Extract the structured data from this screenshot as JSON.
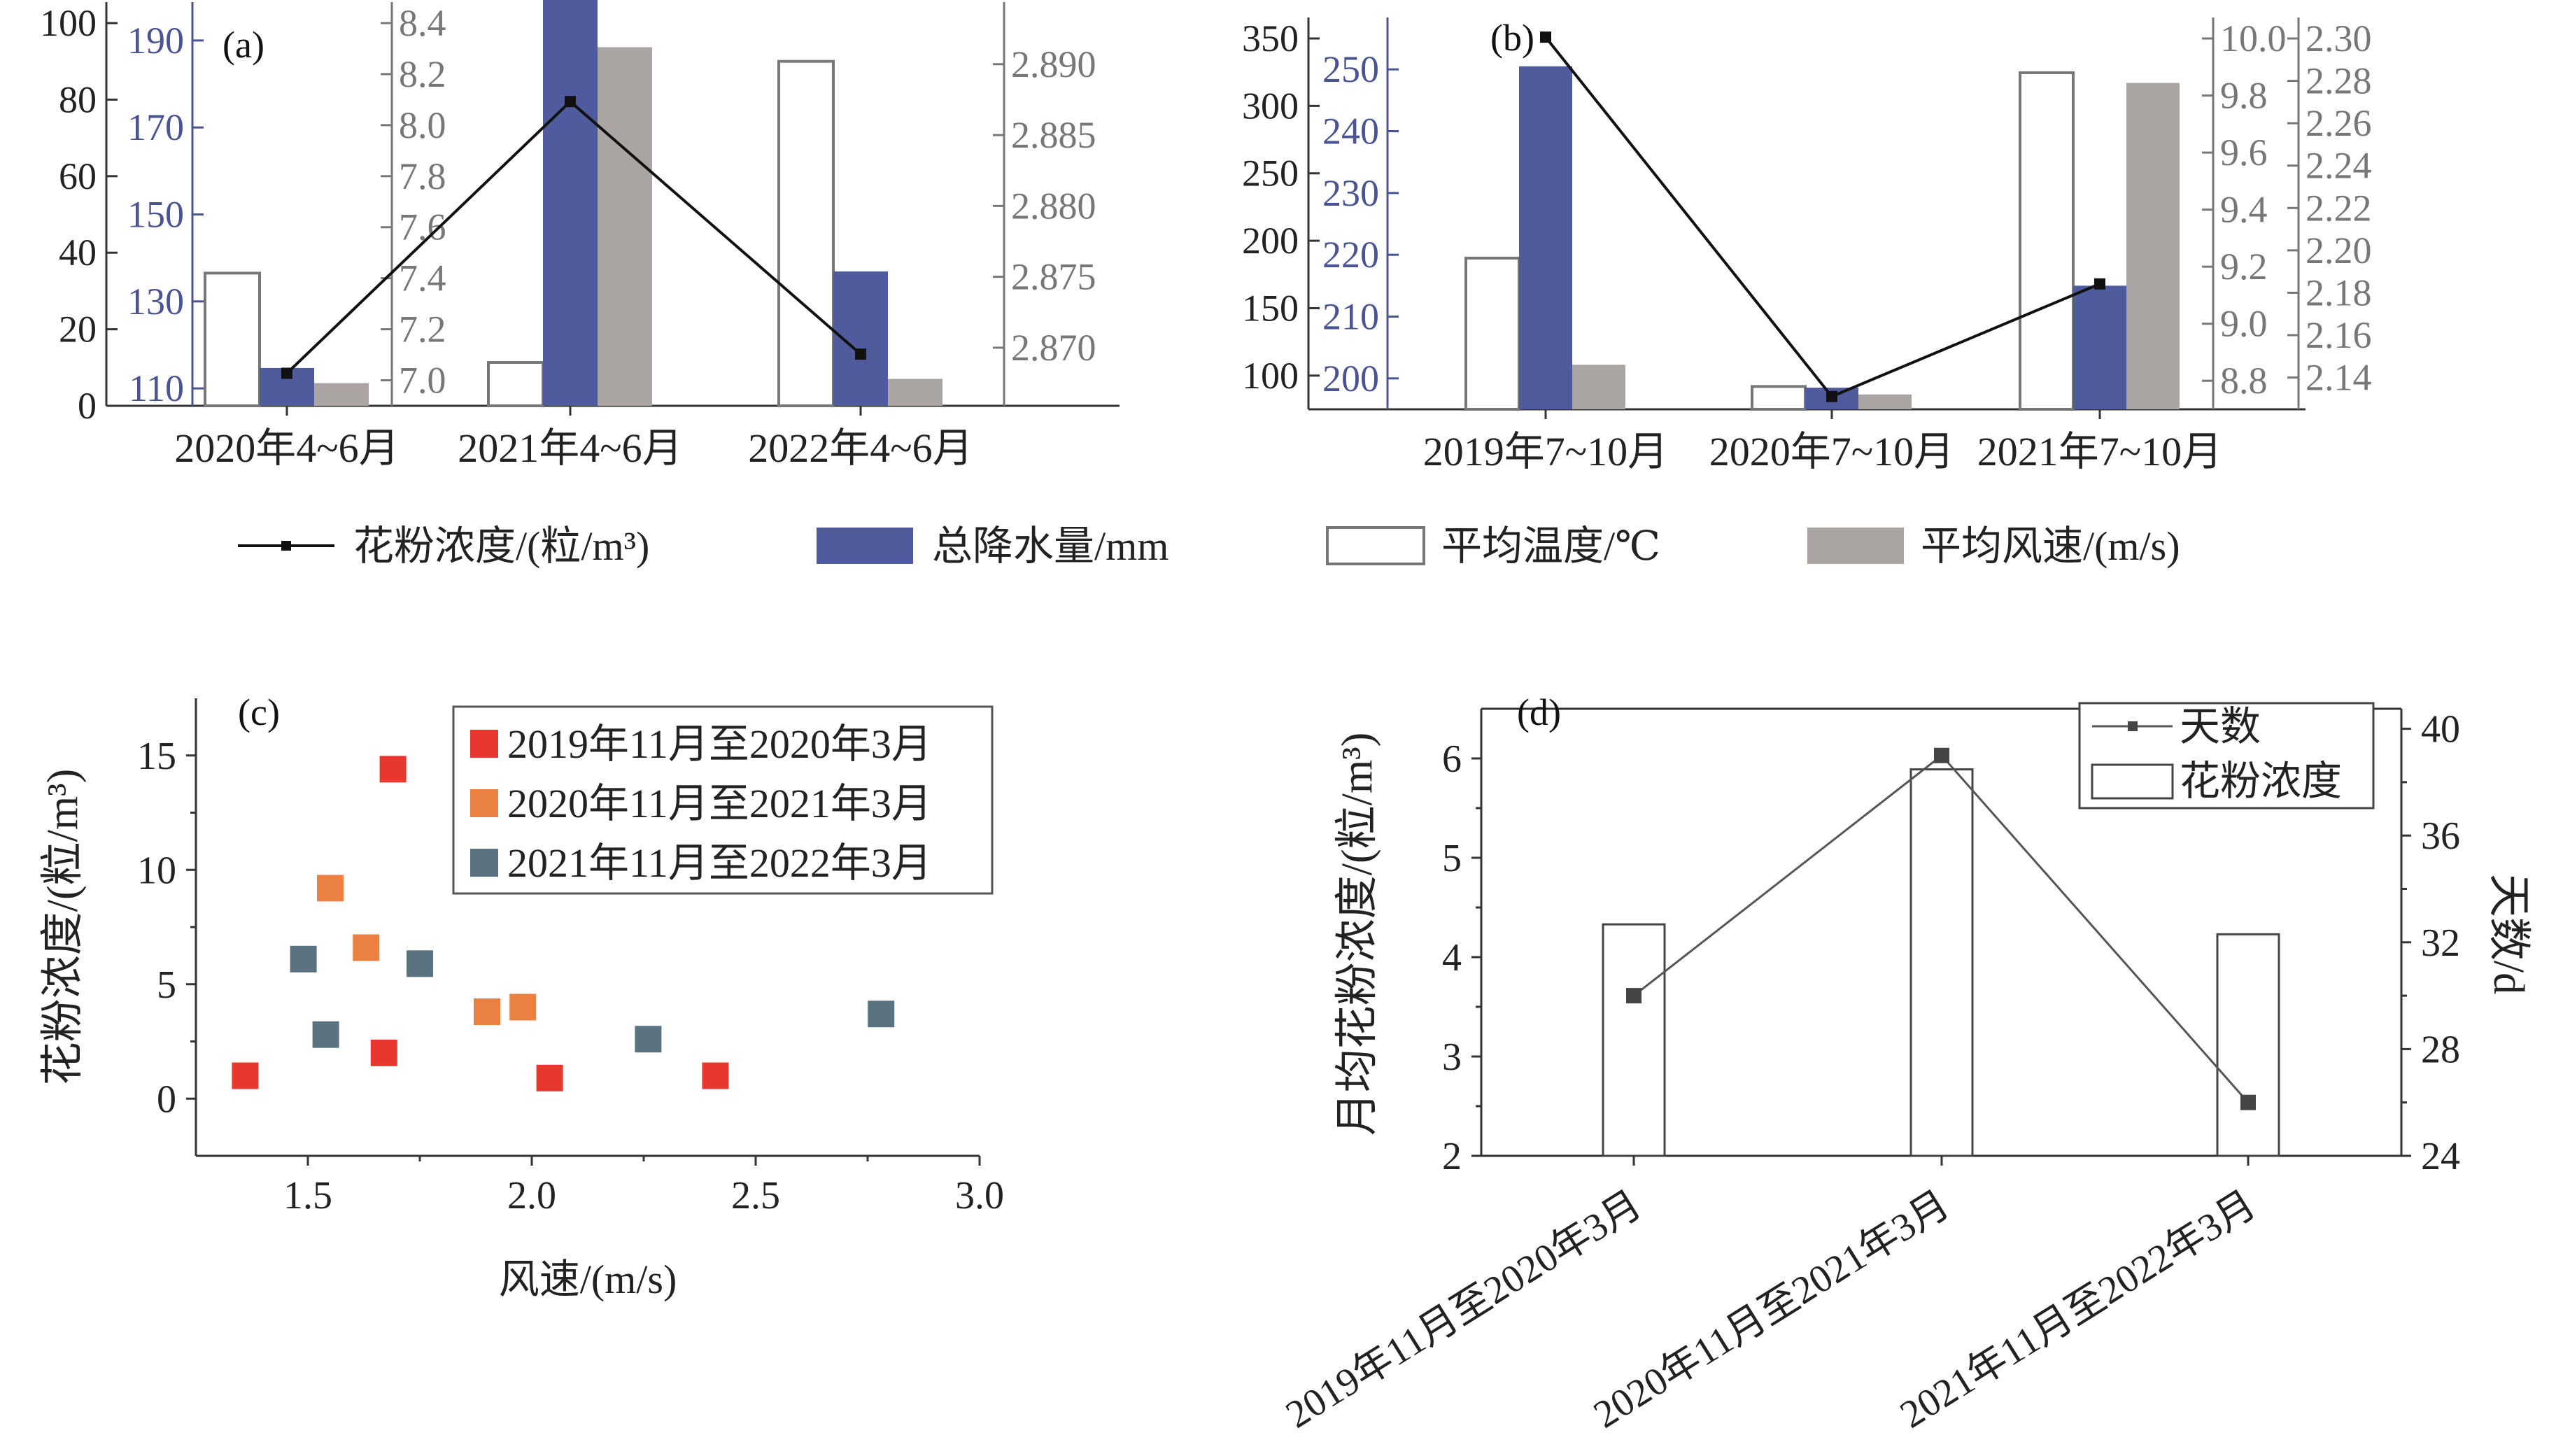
{
  "colors": {
    "axis": "#333333",
    "tick_left": "#222222",
    "tick_precip": "#4a5493",
    "tick_temp": "#777777",
    "tick_wind": "#777777",
    "pollen_line": "#111111",
    "precip_bar": "#4f5b9c",
    "temp_bar_stroke": "#777777",
    "wind_bar": "#aaa4a3",
    "s2019": "#e8372f",
    "s2020": "#ea8143",
    "s2021": "#5b7381",
    "days_line": "#555555"
  },
  "legend_top": {
    "items": [
      {
        "key": "pollen",
        "label": "花粉浓度/(粒/m³)"
      },
      {
        "key": "precip",
        "label": "总降水量/mm"
      },
      {
        "key": "temp",
        "label": "平均温度/℃"
      },
      {
        "key": "wind",
        "label": "平均风速/(m/s)"
      }
    ]
  },
  "chart_data": [
    {
      "panel": "(a)",
      "type": "bar",
      "categories": [
        "2020年4~6月",
        "2021年4~6月",
        "2022年4~6月"
      ],
      "series": [
        {
          "name": "花粉浓度/(粒/m³)",
          "kind": "line",
          "axis": "left",
          "values": [
            8.5,
            79.5,
            13.5
          ]
        },
        {
          "name": "总降水量/mm",
          "kind": "bar",
          "axis": "precip",
          "values": [
            114.7,
            202.8,
            136.9
          ]
        },
        {
          "name": "平均温度/℃",
          "kind": "bar_outline",
          "axis": "temp",
          "values": [
            7.42,
            7.07,
            8.25
          ]
        },
        {
          "name": "平均风速/(m/s)",
          "kind": "bar",
          "axis": "wind",
          "values": [
            2.8675,
            2.8912,
            2.8678
          ]
        }
      ],
      "axes": {
        "left": {
          "min": 0,
          "max": 100,
          "ticks": [
            "0",
            "20",
            "40",
            "60",
            "80",
            "100"
          ]
        },
        "precip": {
          "min": 106,
          "max": 194,
          "ticks": [
            "110",
            "130",
            "150",
            "170",
            "190"
          ]
        },
        "temp": {
          "min": 6.9,
          "max": 8.4,
          "ticks": [
            "7.0",
            "7.2",
            "7.4",
            "7.6",
            "7.8",
            "8.0",
            "8.2",
            "8.4"
          ]
        },
        "wind": {
          "min": 2.8659,
          "max": 2.8929,
          "ticks": [
            "2.870",
            "2.875",
            "2.880",
            "2.885",
            "2.890"
          ]
        }
      }
    },
    {
      "panel": "(b)",
      "type": "bar",
      "categories": [
        "2019年7~10月",
        "2020年7~10月",
        "2021年7~10月"
      ],
      "series": [
        {
          "name": "花粉浓度/(粒/m³)",
          "kind": "line",
          "axis": "left",
          "values": [
            351,
            84.5,
            168
          ]
        },
        {
          "name": "总降水量/mm",
          "kind": "bar",
          "axis": "precip",
          "values": [
            250.5,
            198.5,
            215
          ]
        },
        {
          "name": "平均温度/℃",
          "kind": "bar_outline",
          "axis": "temp",
          "values": [
            9.23,
            8.78,
            9.88
          ]
        },
        {
          "name": "平均风速/(m/s)",
          "kind": "bar",
          "axis": "wind",
          "values": [
            2.146,
            2.132,
            2.279
          ]
        }
      ],
      "axes": {
        "left": {
          "min": 75,
          "max": 350,
          "ticks": [
            "100",
            "150",
            "200",
            "250",
            "300",
            "350"
          ]
        },
        "precip": {
          "min": 195,
          "max": 255,
          "ticks": [
            "200",
            "210",
            "220",
            "230",
            "240",
            "250"
          ]
        },
        "temp": {
          "min": 8.7,
          "max": 10.0,
          "ticks": [
            "8.8",
            "9.0",
            "9.2",
            "9.4",
            "9.6",
            "9.8",
            "10.0"
          ]
        },
        "wind": {
          "min": 2.125,
          "max": 2.3,
          "ticks": [
            "2.14",
            "2.16",
            "2.18",
            "2.20",
            "2.22",
            "2.24",
            "2.26",
            "2.28",
            "2.30"
          ]
        }
      }
    },
    {
      "panel": "(c)",
      "type": "scatter",
      "xlabel": "风速/(m/s)",
      "ylabel": "花粉浓度/(粒/m³)",
      "xlim": [
        1.25,
        3.0
      ],
      "ylim": [
        -2.5,
        17.5
      ],
      "xticks": [
        "1.5",
        "2.0",
        "2.5",
        "3.0"
      ],
      "yticks": [
        "0",
        "5",
        "10",
        "15"
      ],
      "series": [
        {
          "name": "2019年11月至2020年3月",
          "points": [
            [
              1.36,
              1.0
            ],
            [
              1.67,
              2.0
            ],
            [
              1.69,
              14.4
            ],
            [
              2.04,
              0.9
            ],
            [
              2.41,
              1.0
            ]
          ]
        },
        {
          "name": "2020年11月至2021年3月",
          "points": [
            [
              1.55,
              9.2
            ],
            [
              1.63,
              6.6
            ],
            [
              1.9,
              3.8
            ],
            [
              1.98,
              4.0
            ]
          ]
        },
        {
          "name": "2021年11月至2022年3月",
          "points": [
            [
              1.49,
              6.1
            ],
            [
              1.54,
              2.8
            ],
            [
              1.75,
              5.9
            ],
            [
              2.26,
              2.6
            ],
            [
              2.78,
              3.7
            ]
          ]
        }
      ]
    },
    {
      "panel": "(d)",
      "type": "bar",
      "categories": [
        "2019年11月至2020年3月",
        "2020年11月至2021年3月",
        "2021年11月至2022年3月"
      ],
      "ylabel": "月均花粉浓度/(粒/m³)",
      "y2label": "天数/d",
      "ylim": [
        2,
        6.5
      ],
      "y2lim": [
        24,
        40.75
      ],
      "yticks": [
        "2",
        "3",
        "4",
        "5",
        "6"
      ],
      "y2ticks": [
        "24",
        "28",
        "32",
        "36",
        "40"
      ],
      "series": [
        {
          "name": "花粉浓度",
          "kind": "bar_outline",
          "axis": "left",
          "values": [
            4.33,
            5.89,
            4.23
          ]
        },
        {
          "name": "天数",
          "kind": "line",
          "axis": "right",
          "values": [
            30,
            39,
            26
          ]
        }
      ]
    }
  ]
}
